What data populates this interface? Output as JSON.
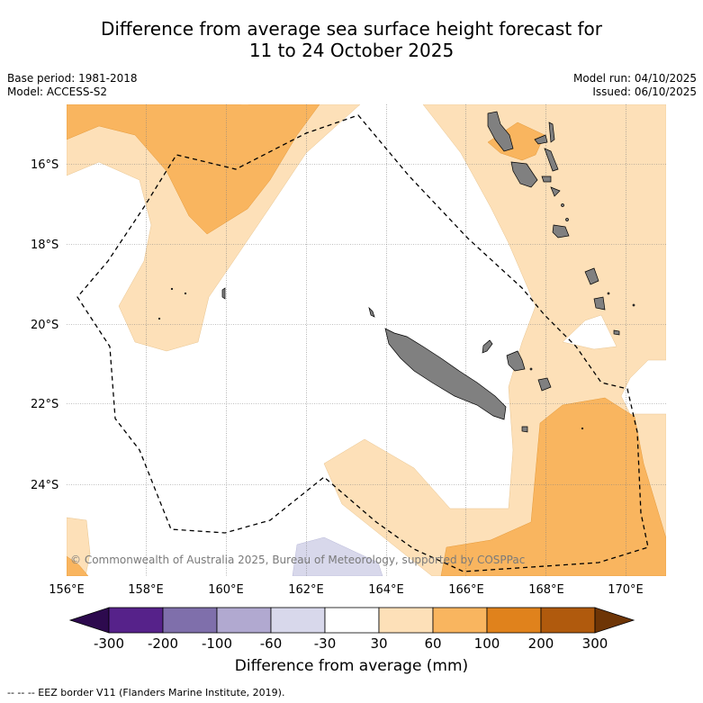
{
  "title_line1": "Difference from average sea surface height forecast for",
  "title_line2": "11 to 24 October 2025",
  "base_period": "Base period: 1981-2018",
  "model": "Model: ACCESS-S2",
  "model_run": "Model run: 04/10/2025",
  "issued": "Issued: 06/10/2025",
  "copyright": "© Commonwealth of Australia 2025, Bureau of Meteorology, supported by COSPPac",
  "lat_labels": [
    "16°S",
    "18°S",
    "20°S",
    "22°S",
    "24°S"
  ],
  "lon_labels": [
    "156°E",
    "158°E",
    "160°E",
    "162°E",
    "164°E",
    "166°E",
    "168°E",
    "170°E"
  ],
  "colorbar": {
    "title": "Difference from average (mm)",
    "tick_labels": [
      "-300",
      "-200",
      "-100",
      "-60",
      "-30",
      "30",
      "60",
      "100",
      "200",
      "300"
    ],
    "colors": [
      "#2d0a4e",
      "#56228a",
      "#7f6fab",
      "#b1a9d0",
      "#d8d8eb",
      "#ffffff",
      "#fde0b8",
      "#f9b55f",
      "#e0821c",
      "#b05a0d",
      "#6e3506"
    ]
  },
  "footnote": "--  --  -- EEZ border V11 (Flanders Marine Institute, 2019).",
  "colors": {
    "land": "#808080",
    "grid": "#808080",
    "eez": "#000000"
  }
}
